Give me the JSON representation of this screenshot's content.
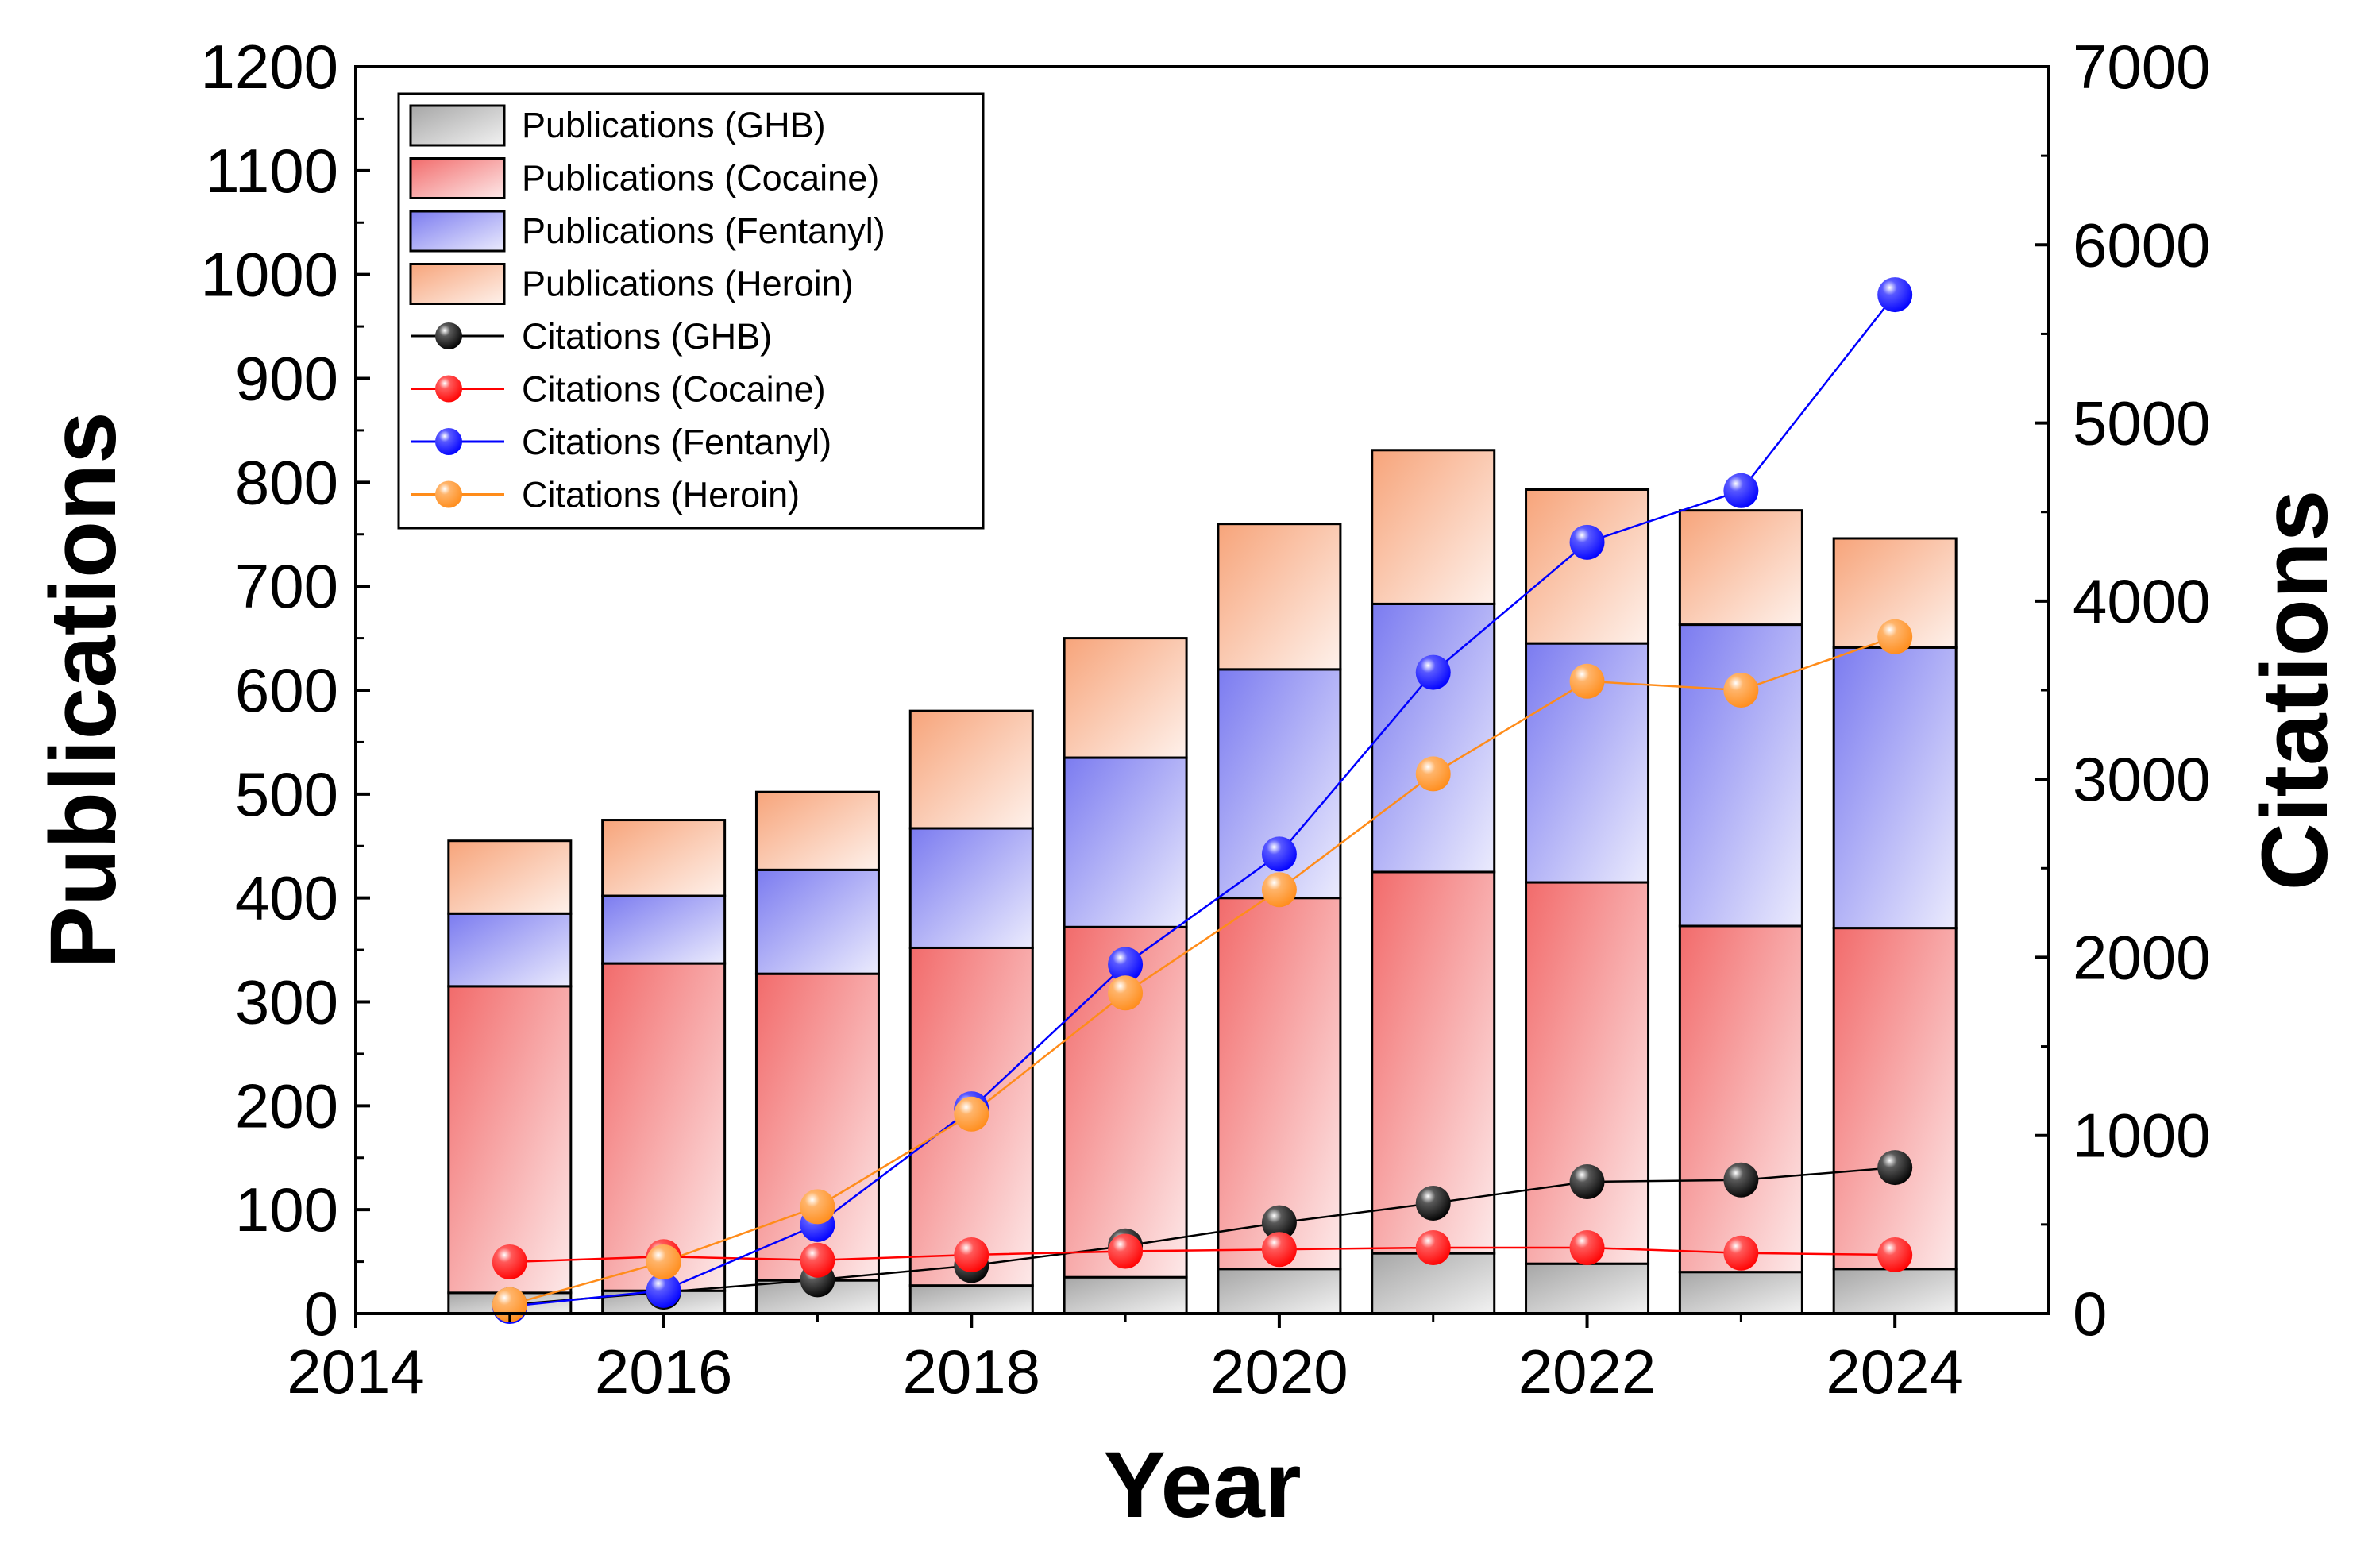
{
  "chart_data": {
    "type": "bar",
    "stacked": true,
    "secondary_type": "line",
    "xlabel": "Year",
    "ylabel": "Publications",
    "y2label": "Citations",
    "xlim": [
      2014,
      2025
    ],
    "ylim": [
      0,
      1200
    ],
    "y2lim": [
      0,
      7000
    ],
    "x_ticks": [
      "2014",
      "2016",
      "2018",
      "2020",
      "2022",
      "2024"
    ],
    "y_ticks": [
      "0",
      "100",
      "200",
      "300",
      "400",
      "500",
      "600",
      "700",
      "800",
      "900",
      "1000",
      "1100",
      "1200"
    ],
    "y2_ticks": [
      "0",
      "1000",
      "2000",
      "3000",
      "4000",
      "5000",
      "6000",
      "7000"
    ],
    "grid": false,
    "legend_position": "top-left",
    "categories": [
      2015,
      2016,
      2017,
      2018,
      2019,
      2020,
      2021,
      2022,
      2023,
      2024
    ],
    "bar_series": [
      {
        "name": "Publications (GHB)",
        "color": "#a6a6a6",
        "values": [
          20,
          22,
          32,
          27,
          35,
          43,
          58,
          48,
          40,
          43
        ]
      },
      {
        "name": "Publications (Cocaine)",
        "color": "#f26b6b",
        "values": [
          295,
          315,
          295,
          325,
          337,
          357,
          367,
          367,
          333,
          328
        ]
      },
      {
        "name": "Publications (Fentanyl)",
        "color": "#7b7bf0",
        "values": [
          70,
          65,
          100,
          115,
          163,
          220,
          258,
          230,
          290,
          270
        ]
      },
      {
        "name": "Publications (Heroin)",
        "color": "#f7a47a",
        "values": [
          70,
          73,
          75,
          113,
          115,
          140,
          148,
          148,
          110,
          105
        ]
      }
    ],
    "line_series": [
      {
        "name": "Citations (GHB)",
        "color": "#000000",
        "values": [
          50,
          120,
          190,
          270,
          380,
          510,
          620,
          740,
          750,
          820
        ]
      },
      {
        "name": "Citations (Cocaine)",
        "color": "#ff0000",
        "values": [
          290,
          320,
          300,
          330,
          350,
          360,
          370,
          370,
          340,
          330
        ]
      },
      {
        "name": "Citations (Fentanyl)",
        "color": "#0000ff",
        "values": [
          40,
          130,
          500,
          1150,
          1960,
          2580,
          3600,
          4330,
          4620,
          5720
        ]
      },
      {
        "name": "Citations (Heroin)",
        "color": "#ff8c1a",
        "values": [
          50,
          290,
          600,
          1120,
          1800,
          2380,
          3030,
          3550,
          3500,
          3800
        ]
      }
    ]
  }
}
